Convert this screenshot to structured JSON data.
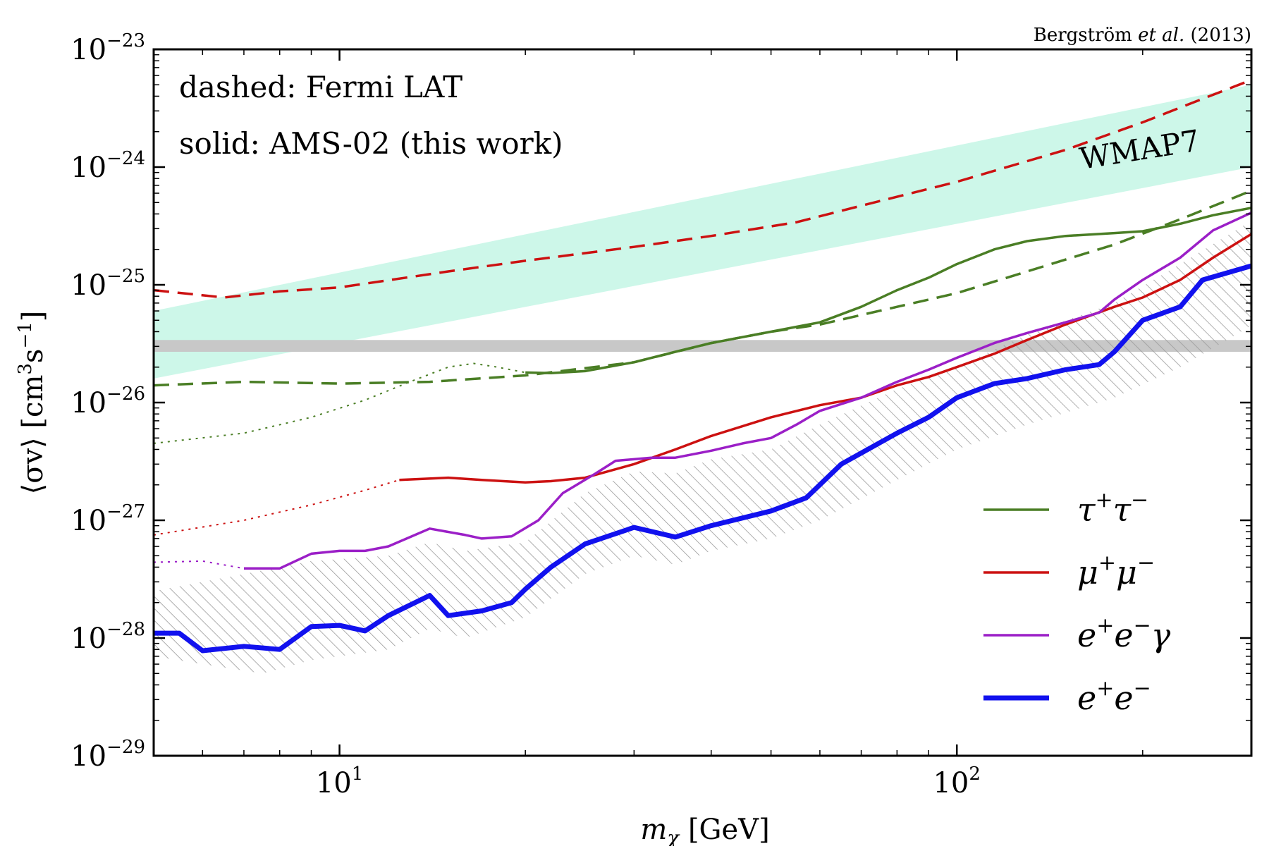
{
  "chart_data": {
    "type": "line",
    "title": "",
    "credit": {
      "prefix": "Bergström ",
      "italic": "et al.",
      "suffix": " (2013)"
    },
    "xlabel": {
      "var": "m",
      "sub": "χ",
      "unit": " [GeV]"
    },
    "ylabel": {
      "left": "⟨σv⟩ [cm",
      "sup1": "3",
      "mid": "s",
      "sup2": "−1",
      "right": "]"
    },
    "x_scale": "log",
    "y_scale": "log",
    "xlim": [
      5,
      300
    ],
    "ylim": [
      1e-29,
      1e-23
    ],
    "x_ticks": [
      {
        "value": 10,
        "base": "10",
        "exp": "1"
      },
      {
        "value": 100,
        "base": "10",
        "exp": "2"
      }
    ],
    "y_ticks": [
      {
        "value": 1e-23,
        "base": "10",
        "exp": "−23"
      },
      {
        "value": 1e-24,
        "base": "10",
        "exp": "−24"
      },
      {
        "value": 1e-25,
        "base": "10",
        "exp": "−25"
      },
      {
        "value": 1e-26,
        "base": "10",
        "exp": "−26"
      },
      {
        "value": 1e-27,
        "base": "10",
        "exp": "−27"
      },
      {
        "value": 1e-28,
        "base": "10",
        "exp": "−28"
      },
      {
        "value": 1e-29,
        "base": "10",
        "exp": "−29"
      }
    ],
    "annotations": {
      "dashed": "dashed: Fermi LAT",
      "solid": "solid: AMS-02 (this work)",
      "wmap": "WMAP7"
    },
    "bands": [
      {
        "name": "WMAP7",
        "color": "#cdf7e9",
        "lower": [
          [
            5,
            1.6e-26
          ],
          [
            300,
            1e-24
          ]
        ],
        "upper": [
          [
            5,
            6e-26
          ],
          [
            300,
            5e-24
          ]
        ]
      },
      {
        "name": "thermal",
        "color": "#c8c8c8",
        "lower": [
          [
            5,
            2.7e-26
          ],
          [
            300,
            2.7e-26
          ]
        ],
        "upper": [
          [
            5,
            3.4e-26
          ],
          [
            300,
            3.4e-26
          ]
        ]
      }
    ],
    "hatch_band": {
      "color": "#999999",
      "lower": [
        [
          5,
          7e-29
        ],
        [
          6,
          6e-29
        ],
        [
          7.5,
          5e-29
        ],
        [
          9,
          6.5e-29
        ],
        [
          12,
          8e-29
        ],
        [
          14,
          1.2e-28
        ],
        [
          16,
          1e-28
        ],
        [
          20,
          1.5e-28
        ],
        [
          25,
          3.5e-28
        ],
        [
          30,
          5e-28
        ],
        [
          35,
          4.2e-28
        ],
        [
          40,
          5.5e-28
        ],
        [
          50,
          7e-28
        ],
        [
          60,
          1e-27
        ],
        [
          80,
          2.2e-27
        ],
        [
          100,
          4e-27
        ],
        [
          130,
          6.5e-27
        ],
        [
          180,
          1.1e-26
        ],
        [
          230,
          2e-26
        ],
        [
          300,
          4.5e-26
        ]
      ],
      "upper": [
        [
          5,
          2.5e-28
        ],
        [
          7,
          3.5e-28
        ],
        [
          9,
          4.5e-28
        ],
        [
          12,
          5e-28
        ],
        [
          14,
          6.5e-28
        ],
        [
          16,
          5.5e-28
        ],
        [
          20,
          6.5e-28
        ],
        [
          25,
          1.7e-27
        ],
        [
          30,
          2.6e-27
        ],
        [
          35,
          2.5e-27
        ],
        [
          40,
          3.3e-27
        ],
        [
          50,
          4e-27
        ],
        [
          60,
          6.5e-27
        ],
        [
          80,
          1.3e-26
        ],
        [
          100,
          2e-26
        ],
        [
          130,
          3.8e-26
        ],
        [
          180,
          7e-26
        ],
        [
          230,
          1.5e-25
        ],
        [
          300,
          3.5e-25
        ]
      ]
    },
    "series": [
      {
        "name": "τ⁺τ⁻",
        "style": "dashed",
        "color": "#4a7e25",
        "width": 3.5,
        "points": [
          [
            5,
            1.4e-26
          ],
          [
            7,
            1.5e-26
          ],
          [
            10,
            1.45e-26
          ],
          [
            14,
            1.5e-26
          ],
          [
            20,
            1.7e-26
          ],
          [
            30,
            2.2e-26
          ],
          [
            40,
            3.2e-26
          ],
          [
            50,
            4e-26
          ],
          [
            60,
            4.6e-26
          ],
          [
            80,
            6.5e-26
          ],
          [
            100,
            8.5e-26
          ],
          [
            130,
            1.3e-25
          ],
          [
            180,
            2.2e-25
          ],
          [
            230,
            3.6e-25
          ],
          [
            300,
            6.3e-25
          ]
        ]
      },
      {
        "name": "μ⁺μ⁻",
        "style": "dashed",
        "color": "#cc1111",
        "width": 3.5,
        "points": [
          [
            5,
            9e-26
          ],
          [
            6.5,
            7.8e-26
          ],
          [
            8,
            8.8e-26
          ],
          [
            10,
            9.5e-26
          ],
          [
            15,
            1.3e-25
          ],
          [
            20,
            1.6e-25
          ],
          [
            30,
            2.1e-25
          ],
          [
            40,
            2.6e-25
          ],
          [
            55,
            3.4e-25
          ],
          [
            70,
            4.7e-25
          ],
          [
            100,
            7.5e-25
          ],
          [
            150,
            1.4e-24
          ],
          [
            200,
            2.4e-24
          ],
          [
            250,
            3.8e-24
          ],
          [
            300,
            5.5e-24
          ]
        ]
      },
      {
        "name": "τ⁺τ⁻",
        "style": "dotted",
        "color": "#4a7e25",
        "width": 2,
        "points": [
          [
            5,
            4.5e-27
          ],
          [
            7,
            5.5e-27
          ],
          [
            9,
            7.5e-27
          ],
          [
            11,
            1.05e-26
          ],
          [
            13,
            1.5e-26
          ],
          [
            15,
            2e-26
          ],
          [
            16.5,
            2.15e-26
          ],
          [
            18,
            2e-26
          ],
          [
            20,
            1.8e-26
          ]
        ]
      },
      {
        "name": "μ⁺μ⁻",
        "style": "dotted",
        "color": "#cc1111",
        "width": 2,
        "points": [
          [
            5,
            7.5e-28
          ],
          [
            7,
            1e-27
          ],
          [
            9,
            1.35e-27
          ],
          [
            11,
            1.8e-27
          ],
          [
            12.5,
            2.2e-27
          ]
        ]
      },
      {
        "name": "e⁺e⁻γ",
        "style": "dotted",
        "color": "#9b1fc7",
        "width": 2,
        "points": [
          [
            5,
            4.4e-28
          ],
          [
            6,
            4.5e-28
          ],
          [
            7,
            3.9e-28
          ]
        ]
      },
      {
        "name": "τ⁺τ⁻",
        "style": "solid",
        "color": "#4a7e25",
        "width": 3.5,
        "legend": true,
        "points": [
          [
            20,
            1.8e-26
          ],
          [
            22,
            1.78e-26
          ],
          [
            25,
            1.85e-26
          ],
          [
            30,
            2.2e-26
          ],
          [
            35,
            2.7e-26
          ],
          [
            40,
            3.2e-26
          ],
          [
            50,
            4e-26
          ],
          [
            60,
            4.8e-26
          ],
          [
            70,
            6.5e-26
          ],
          [
            80,
            9e-26
          ],
          [
            90,
            1.15e-25
          ],
          [
            100,
            1.5e-25
          ],
          [
            115,
            2e-25
          ],
          [
            130,
            2.35e-25
          ],
          [
            150,
            2.6e-25
          ],
          [
            180,
            2.75e-25
          ],
          [
            200,
            2.85e-25
          ],
          [
            230,
            3.3e-25
          ],
          [
            260,
            3.9e-25
          ],
          [
            300,
            4.5e-25
          ]
        ]
      },
      {
        "name": "μ⁺μ⁻",
        "style": "solid",
        "color": "#cc1111",
        "width": 3.5,
        "legend": true,
        "points": [
          [
            12.5,
            2.2e-27
          ],
          [
            15,
            2.3e-27
          ],
          [
            17,
            2.2e-27
          ],
          [
            20,
            2.1e-27
          ],
          [
            22,
            2.15e-27
          ],
          [
            25,
            2.3e-27
          ],
          [
            30,
            3e-27
          ],
          [
            35,
            4e-27
          ],
          [
            40,
            5.2e-27
          ],
          [
            50,
            7.5e-27
          ],
          [
            60,
            9.5e-27
          ],
          [
            70,
            1.1e-26
          ],
          [
            80,
            1.4e-26
          ],
          [
            90,
            1.65e-26
          ],
          [
            100,
            2e-26
          ],
          [
            115,
            2.6e-26
          ],
          [
            130,
            3.4e-26
          ],
          [
            150,
            4.6e-26
          ],
          [
            180,
            6.5e-26
          ],
          [
            200,
            7.8e-26
          ],
          [
            230,
            1.1e-25
          ],
          [
            260,
            1.7e-25
          ],
          [
            300,
            2.7e-25
          ]
        ]
      },
      {
        "name": "e⁺e⁻γ",
        "style": "solid",
        "color": "#9b1fc7",
        "width": 3.5,
        "legend": true,
        "points": [
          [
            7,
            3.9e-28
          ],
          [
            8,
            3.9e-28
          ],
          [
            9,
            5.2e-28
          ],
          [
            10,
            5.5e-28
          ],
          [
            11,
            5.5e-28
          ],
          [
            12,
            6e-28
          ],
          [
            14,
            8.5e-28
          ],
          [
            16,
            7.5e-28
          ],
          [
            17,
            7e-28
          ],
          [
            19,
            7.3e-28
          ],
          [
            21,
            1e-27
          ],
          [
            23,
            1.7e-27
          ],
          [
            26,
            2.5e-27
          ],
          [
            28,
            3.2e-27
          ],
          [
            32,
            3.4e-27
          ],
          [
            35,
            3.4e-27
          ],
          [
            40,
            3.9e-27
          ],
          [
            45,
            4.5e-27
          ],
          [
            50,
            5e-27
          ],
          [
            55,
            6.5e-27
          ],
          [
            60,
            8.5e-27
          ],
          [
            70,
            1.1e-26
          ],
          [
            80,
            1.5e-26
          ],
          [
            90,
            1.9e-26
          ],
          [
            100,
            2.4e-26
          ],
          [
            115,
            3.2e-26
          ],
          [
            130,
            3.9e-26
          ],
          [
            150,
            4.8e-26
          ],
          [
            170,
            5.8e-26
          ],
          [
            180,
            7.5e-26
          ],
          [
            200,
            1.1e-25
          ],
          [
            230,
            1.7e-25
          ],
          [
            260,
            2.9e-25
          ],
          [
            300,
            4.1e-25
          ]
        ]
      },
      {
        "name": "e⁺e⁻",
        "style": "solid",
        "color": "#1111ee",
        "width": 7,
        "legend": true,
        "points": [
          [
            5,
            1.1e-28
          ],
          [
            5.5,
            1.1e-28
          ],
          [
            6,
            7.8e-29
          ],
          [
            7,
            8.5e-29
          ],
          [
            8,
            8e-29
          ],
          [
            9,
            1.25e-28
          ],
          [
            10,
            1.28e-28
          ],
          [
            11,
            1.15e-28
          ],
          [
            12,
            1.55e-28
          ],
          [
            14,
            2.3e-28
          ],
          [
            15,
            1.55e-28
          ],
          [
            17,
            1.7e-28
          ],
          [
            19,
            2e-28
          ],
          [
            20,
            2.6e-28
          ],
          [
            22,
            4e-28
          ],
          [
            25,
            6.3e-28
          ],
          [
            30,
            8.7e-28
          ],
          [
            35,
            7.2e-28
          ],
          [
            40,
            9e-28
          ],
          [
            50,
            1.2e-27
          ],
          [
            57,
            1.55e-27
          ],
          [
            65,
            3e-27
          ],
          [
            80,
            5.5e-27
          ],
          [
            90,
            7.5e-27
          ],
          [
            100,
            1.1e-26
          ],
          [
            115,
            1.45e-26
          ],
          [
            130,
            1.6e-26
          ],
          [
            150,
            1.9e-26
          ],
          [
            170,
            2.1e-26
          ],
          [
            180,
            2.7e-26
          ],
          [
            200,
            5e-26
          ],
          [
            230,
            6.5e-26
          ],
          [
            250,
            1.1e-25
          ],
          [
            300,
            1.45e-25
          ]
        ]
      }
    ],
    "legend": {
      "placement": "lower-right",
      "entries": [
        {
          "color": "#4a7e25",
          "width": 3.5,
          "p1": "τ",
          "s1": "+",
          "p2": "τ",
          "s2": "−",
          "p3": ""
        },
        {
          "color": "#cc1111",
          "width": 3.5,
          "p1": "μ",
          "s1": "+",
          "p2": "μ",
          "s2": "−",
          "p3": ""
        },
        {
          "color": "#9b1fc7",
          "width": 3.5,
          "p1": "e",
          "s1": "+",
          "p2": "e",
          "s2": "−",
          "p3": "γ"
        },
        {
          "color": "#1111ee",
          "width": 7,
          "p1": "e",
          "s1": "+",
          "p2": "e",
          "s2": "−",
          "p3": ""
        }
      ]
    }
  }
}
